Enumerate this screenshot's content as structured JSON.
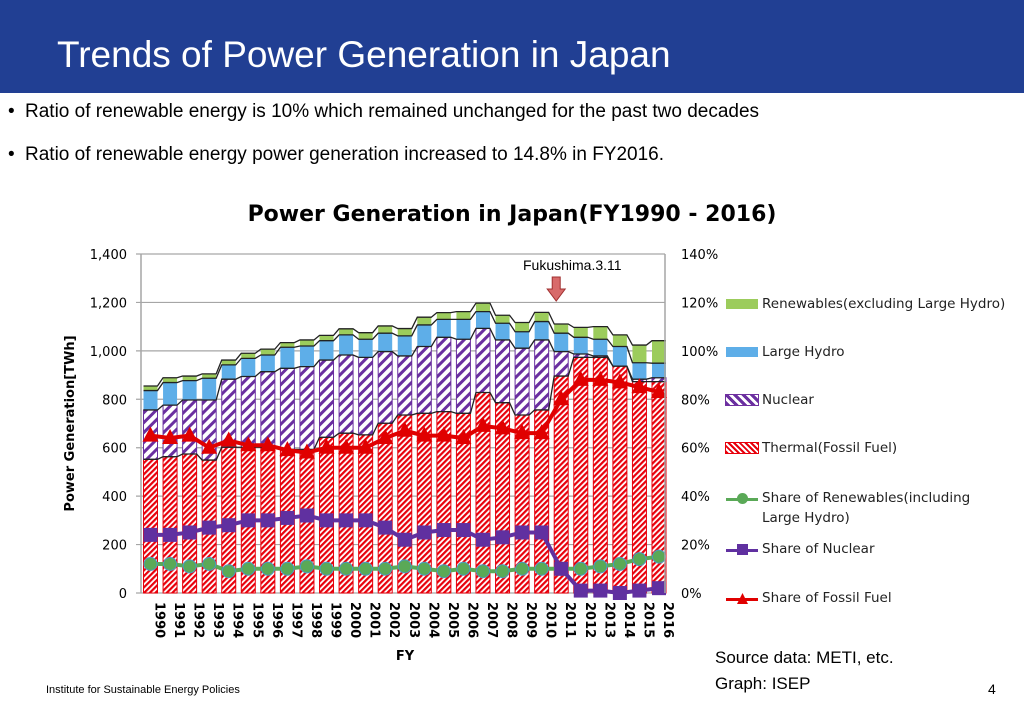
{
  "header": {
    "title": "Trends of Power Generation in Japan"
  },
  "bullets": [
    "Ratio of renewable energy is 10% which remained unchanged for the  past two decades",
    "Ratio of renewable energy power generation increased to 14.8% in FY2016."
  ],
  "footer": {
    "org": "Institute for Sustainable Energy Policies",
    "page": "4",
    "source_line1": "Source data: METI, etc.",
    "source_line2": "Graph: ISEP"
  },
  "chart_data": {
    "type": "bar",
    "stacked": true,
    "title": "Power Generation in Japan(FY1990 - 2016)",
    "xlabel": "FY",
    "ylabel": "Power Generation[TWh]",
    "ylim": [
      0,
      1400
    ],
    "y2lim": [
      0,
      140
    ],
    "yticks": [
      "0",
      "200",
      "400",
      "600",
      "800",
      "1,000",
      "1,200",
      "1,400"
    ],
    "y2ticks": [
      "0%",
      "20%",
      "40%",
      "60%",
      "80%",
      "100%",
      "120%",
      "140%"
    ],
    "grid": true,
    "legend": "right",
    "annotation": "Fukushima.3.11",
    "annotation_year": "2011",
    "categories": [
      "1990",
      "1991",
      "1992",
      "1993",
      "1994",
      "1995",
      "1996",
      "1997",
      "1998",
      "1999",
      "2000",
      "2001",
      "2002",
      "2003",
      "2004",
      "2005",
      "2006",
      "2007",
      "2008",
      "2009",
      "2010",
      "2011",
      "2012",
      "2013",
      "2014",
      "2015",
      "2016"
    ],
    "series": [
      {
        "name": "Thermal(Fossil Fuel)",
        "axis": "left",
        "kind": "bar",
        "color": "#e8000b",
        "values": [
          552,
          563,
          574,
          549,
          602,
          602,
          602,
          593,
          593,
          643,
          660,
          653,
          701,
          735,
          742,
          749,
          742,
          828,
          786,
          735,
          756,
          896,
          973,
          973,
          937,
          873,
          873
        ]
      },
      {
        "name": "Nuclear",
        "axis": "left",
        "kind": "bar",
        "color": "#7030a0",
        "values": [
          204,
          213,
          223,
          248,
          281,
          292,
          312,
          335,
          342,
          319,
          323,
          320,
          296,
          244,
          276,
          307,
          306,
          265,
          259,
          276,
          289,
          101,
          14,
          6,
          0,
          10,
          16
        ]
      },
      {
        "name": "Large Hydro",
        "axis": "left",
        "kind": "bar",
        "color": "#5eaee8",
        "values": [
          80,
          93,
          80,
          90,
          59,
          75,
          69,
          87,
          85,
          80,
          83,
          75,
          76,
          83,
          89,
          74,
          82,
          69,
          69,
          68,
          76,
          76,
          69,
          69,
          81,
          68,
          60
        ]
      },
      {
        "name": "Renewables(excluding Large Hydro)",
        "axis": "left",
        "kind": "bar",
        "color": "#9ccc5c",
        "values": [
          19,
          20,
          19,
          18,
          20,
          21,
          24,
          19,
          25,
          22,
          25,
          27,
          30,
          30,
          32,
          28,
          32,
          35,
          33,
          38,
          38,
          38,
          41,
          52,
          48,
          73,
          93
        ]
      },
      {
        "name": "Share of Renewables(including Large Hydro)",
        "axis": "right",
        "kind": "line",
        "marker": "circle",
        "color": "#5aa957",
        "values": [
          12,
          12,
          11,
          12,
          9,
          10,
          10,
          10,
          11,
          10,
          10,
          10,
          10,
          11,
          10,
          9,
          10,
          9,
          9,
          10,
          10,
          10,
          10,
          11,
          12,
          14,
          15
        ]
      },
      {
        "name": "Share of Nuclear",
        "axis": "right",
        "kind": "line",
        "marker": "square",
        "color": "#6030a0",
        "values": [
          24,
          24,
          25,
          27,
          28,
          30,
          30,
          31,
          32,
          30,
          30,
          30,
          27,
          22,
          25,
          26,
          26,
          22,
          23,
          25,
          25,
          10,
          1,
          1,
          0,
          1,
          2
        ]
      },
      {
        "name": "Share of Fossil Fuel",
        "axis": "right",
        "kind": "line",
        "marker": "triangle",
        "color": "#e00000",
        "values": [
          65,
          64,
          65,
          60,
          63,
          61,
          61,
          59,
          58,
          60,
          60,
          60,
          64,
          67,
          65,
          65,
          64,
          69,
          68,
          66,
          66,
          80,
          88,
          88,
          87,
          85,
          83
        ]
      }
    ]
  }
}
